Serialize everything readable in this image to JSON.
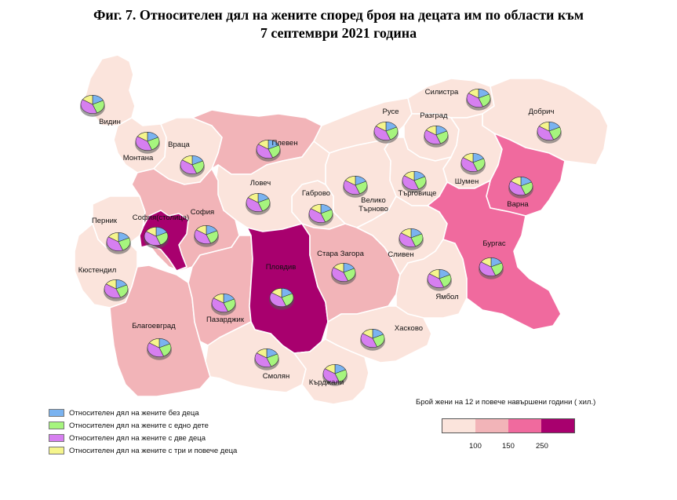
{
  "title": {
    "line1": "Фиг. 7. Относителен дял на жените според броя на децата им по области към",
    "line2": "7 септември 2021 година"
  },
  "pie_colors": {
    "none": "#7ab3f0",
    "one": "#a6f57e",
    "two": "#d67ff0",
    "three_plus": "#f5f58c"
  },
  "fill_classes": {
    "under_100": "#fbe4dc",
    "100_150": "#f2b4b8",
    "150_250": "#f06a9e",
    "over_250": "#a8006e"
  },
  "regions": [
    {
      "key": "vidin",
      "label": "Видин",
      "class": "under_100"
    },
    {
      "key": "montana",
      "label": "Монтана",
      "class": "under_100"
    },
    {
      "key": "vratsa",
      "label": "Враца",
      "class": "under_100"
    },
    {
      "key": "pleven",
      "label": "Плевен",
      "class": "100_150"
    },
    {
      "key": "ruse",
      "label": "Русе",
      "class": "under_100"
    },
    {
      "key": "silistra",
      "label": "Силистра",
      "class": "under_100"
    },
    {
      "key": "dobrich",
      "label": "Добрич",
      "class": "under_100"
    },
    {
      "key": "razgrad",
      "label": "Разград",
      "class": "under_100"
    },
    {
      "key": "shumen",
      "label": "Шумен",
      "class": "under_100"
    },
    {
      "key": "varna",
      "label": "Варна",
      "class": "150_250"
    },
    {
      "key": "targovishte",
      "label": "Търговище",
      "class": "under_100"
    },
    {
      "key": "vtarnovo",
      "label": "Велико\nТърново",
      "class": "under_100"
    },
    {
      "key": "gabrovo",
      "label": "Габрово",
      "class": "under_100"
    },
    {
      "key": "lovech",
      "label": "Ловеч",
      "class": "under_100"
    },
    {
      "key": "sofia_obl",
      "label": "София",
      "class": "100_150"
    },
    {
      "key": "sofia_city",
      "label": "София(столица)",
      "class": "over_250"
    },
    {
      "key": "pernik",
      "label": "Перник",
      "class": "under_100"
    },
    {
      "key": "kyustendil",
      "label": "Кюстендил",
      "class": "under_100"
    },
    {
      "key": "blagoevgrad",
      "label": "Благоевград",
      "class": "100_150"
    },
    {
      "key": "pazardzhik",
      "label": "Пазарджик",
      "class": "100_150"
    },
    {
      "key": "plovdiv",
      "label": "Пловдив",
      "class": "over_250"
    },
    {
      "key": "stara_zagora",
      "label": "Стара Загора",
      "class": "100_150"
    },
    {
      "key": "sliven",
      "label": "Сливен",
      "class": "under_100"
    },
    {
      "key": "yambol",
      "label": "Ямбол",
      "class": "under_100"
    },
    {
      "key": "burgas",
      "label": "Бургас",
      "class": "150_250"
    },
    {
      "key": "haskovo",
      "label": "Хасково",
      "class": "under_100"
    },
    {
      "key": "smolyan",
      "label": "Смолян",
      "class": "under_100"
    },
    {
      "key": "kardzhali",
      "label": "Кърджали",
      "class": "under_100"
    }
  ],
  "legend": {
    "items": [
      {
        "label": "Относителен дял на жените без деца",
        "color": "#7ab3f0"
      },
      {
        "label": "Относителен дял на жените с едно дете",
        "color": "#a6f57e"
      },
      {
        "label": "Относителен дял на жените с две деца",
        "color": "#d67ff0"
      },
      {
        "label": "Относителен дял на жените с три и повече деца",
        "color": "#f5f58c"
      }
    ]
  },
  "scale": {
    "title": "Брой жени на 12 и повече навършени години ( хил.)",
    "colors": [
      "#fbe4dc",
      "#f2b4b8",
      "#f06a9e",
      "#a8006e"
    ],
    "ticks": [
      "100",
      "150",
      "250"
    ]
  }
}
